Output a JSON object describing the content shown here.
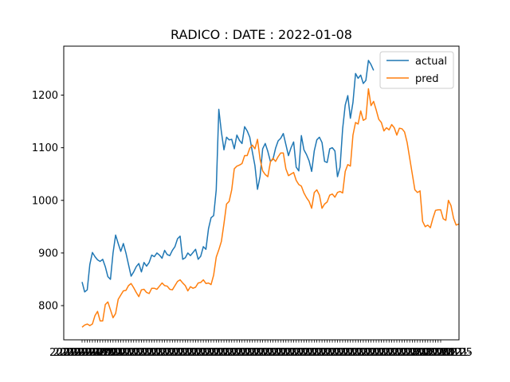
{
  "chart_data": {
    "type": "line",
    "title": "RADICO : DATE : 2022-01-08",
    "xlabel": "",
    "ylabel": "",
    "ylim": [
      735,
      1293
    ],
    "y_ticks": [
      800,
      900,
      1000,
      1100,
      1200
    ],
    "y_tick_labels": [
      "800",
      "900",
      "1000",
      "1100",
      "1200"
    ],
    "x_tick_count": 140,
    "x_tick_labels_visible_left": "2021-",
    "x_tick_labels_visible_right": "2022-01-25",
    "legend_position": "top-right",
    "grid": false,
    "series": [
      {
        "name": "actual",
        "color": "#1f77b4",
        "values": [
          845,
          826,
          830,
          878,
          901,
          893,
          887,
          884,
          888,
          874,
          855,
          850,
          900,
          934,
          918,
          903,
          918,
          900,
          878,
          856,
          864,
          874,
          880,
          864,
          882,
          875,
          882,
          896,
          893,
          900,
          896,
          890,
          905,
          897,
          895,
          905,
          912,
          927,
          932,
          888,
          891,
          900,
          895,
          901,
          907,
          888,
          894,
          912,
          907,
          946,
          967,
          971,
          1020,
          1173,
          1130,
          1096,
          1120,
          1115,
          1116,
          1098,
          1124,
          1114,
          1108,
          1140,
          1132,
          1120,
          1092,
          1066,
          1021,
          1046,
          1098,
          1108,
          1093,
          1074,
          1078,
          1099,
          1113,
          1118,
          1127,
          1106,
          1085,
          1100,
          1111,
          1063,
          1056,
          1123,
          1096,
          1087,
          1075,
          1055,
          1094,
          1115,
          1120,
          1110,
          1074,
          1072,
          1098,
          1100,
          1094,
          1045,
          1063,
          1136,
          1181,
          1199,
          1156,
          1186,
          1241,
          1232,
          1238,
          1222,
          1228,
          1266,
          1258,
          1247
        ]
      },
      {
        "name": "pred",
        "color": "#ff7f0e",
        "values": [
          759,
          763,
          765,
          762,
          765,
          781,
          789,
          771,
          771,
          802,
          807,
          792,
          777,
          785,
          812,
          820,
          828,
          829,
          838,
          842,
          834,
          825,
          817,
          830,
          831,
          825,
          823,
          833,
          833,
          831,
          837,
          843,
          838,
          837,
          831,
          830,
          838,
          846,
          849,
          843,
          838,
          828,
          836,
          833,
          835,
          843,
          844,
          849,
          842,
          843,
          840,
          858,
          892,
          906,
          922,
          956,
          993,
          998,
          1020,
          1060,
          1065,
          1067,
          1070,
          1085,
          1085,
          1099,
          1105,
          1098,
          1116,
          1078,
          1056,
          1049,
          1045,
          1073,
          1080,
          1074,
          1083,
          1090,
          1090,
          1060,
          1047,
          1050,
          1053,
          1038,
          1030,
          1027,
          1014,
          1005,
          998,
          985,
          1015,
          1020,
          1010,
          985,
          993,
          997,
          1010,
          1012,
          1006,
          1015,
          1017,
          1014,
          1055,
          1068,
          1065,
          1124,
          1148,
          1145,
          1170,
          1152,
          1155,
          1212,
          1180,
          1188,
          1172,
          1154,
          1148,
          1132,
          1138,
          1134,
          1144,
          1138,
          1124,
          1137,
          1136,
          1130,
          1110,
          1080,
          1050,
          1020,
          1015,
          1018,
          960,
          950,
          953,
          948,
          966,
          981,
          982,
          982,
          965,
          962,
          1000,
          990,
          966,
          953,
          955
        ]
      }
    ]
  }
}
